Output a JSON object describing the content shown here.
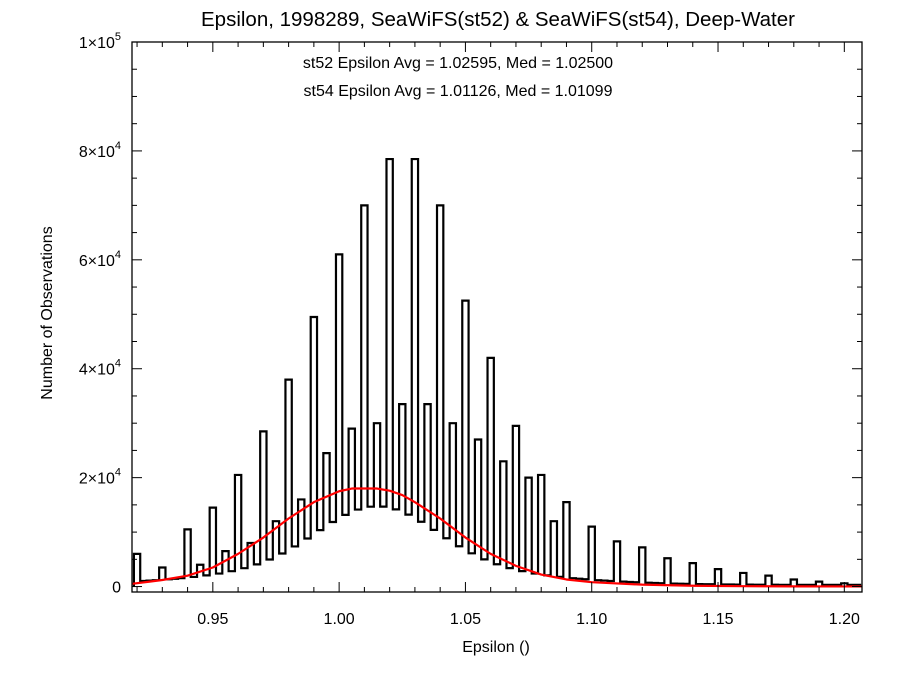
{
  "chart_data": {
    "type": "bar",
    "title": "Epsilon, 1998289, SeaWiFS(st52) & SeaWiFS(st54), Deep-Water",
    "xlabel": "Epsilon ()",
    "ylabel": "Number of Observations",
    "xlim": [
      0.918,
      1.207
    ],
    "ylim": [
      -1000,
      100000
    ],
    "x_ticks": [
      0.95,
      1.0,
      1.05,
      1.1,
      1.15,
      1.2
    ],
    "x_tick_labels": [
      "0.95",
      "1.00",
      "1.05",
      "1.10",
      "1.15",
      "1.20"
    ],
    "y_ticks": [
      0,
      20000,
      40000,
      60000,
      80000,
      100000
    ],
    "y_tick_labels": [
      {
        "mantissa": "0",
        "exp": ""
      },
      {
        "mantissa": "2×10",
        "exp": "4"
      },
      {
        "mantissa": "4×10",
        "exp": "4"
      },
      {
        "mantissa": "6×10",
        "exp": "4"
      },
      {
        "mantissa": "8×10",
        "exp": "4"
      },
      {
        "mantissa": "1×10",
        "exp": "5"
      }
    ],
    "annotations": [
      {
        "text": "st52 Epsilon Avg = 1.02595, Med = 1.02500",
        "color": "#000000"
      },
      {
        "text": "st54 Epsilon Avg = 1.01126, Med = 1.01099",
        "color": "#ff0000"
      }
    ],
    "series": [
      {
        "label": "st52",
        "style": "histogram-step",
        "color": "#000000",
        "spikes_x": [
          0.92,
          0.93,
          0.94,
          0.95,
          0.96,
          0.97,
          0.98,
          0.99,
          1.0,
          1.01,
          1.02,
          1.03,
          1.04,
          1.05,
          1.06,
          1.07,
          1.08,
          1.09,
          1.1,
          1.11,
          1.12,
          1.13,
          1.14,
          1.15,
          1.16,
          1.17,
          1.18,
          1.19,
          1.2
        ],
        "spikes_y": [
          6000,
          3500,
          10500,
          14500,
          20500,
          28500,
          38000,
          49500,
          61000,
          70000,
          78500,
          78500,
          70000,
          52500,
          42000,
          29500,
          20500,
          15500,
          11000,
          8300,
          7200,
          5200,
          4300,
          3200,
          2500,
          2000,
          1300,
          900,
          600
        ],
        "half_x": [
          0.945,
          0.955,
          0.965,
          0.975,
          0.985,
          0.995,
          1.005,
          1.015,
          1.025,
          1.035,
          1.045,
          1.055,
          1.065,
          1.075,
          1.085
        ],
        "half_y": [
          4000,
          6500,
          8000,
          12000,
          16000,
          24500,
          29000,
          30000,
          33500,
          33500,
          30000,
          27000,
          23000,
          20000,
          12000
        ],
        "baseline": {
          "x0": 0.92,
          "x1": 1.205,
          "peak": 1.015,
          "peak_y": 4000,
          "width": 0.05,
          "floor": 300
        },
        "mid": {
          "peak": 1.015,
          "peak_y": 15500,
          "width": 0.023
        }
      },
      {
        "label": "st54",
        "style": "line",
        "color": "#ff0000",
        "x": [
          0.918,
          0.925,
          0.93,
          0.94,
          0.95,
          0.96,
          0.97,
          0.98,
          0.99,
          1.0,
          1.005,
          1.01,
          1.015,
          1.02,
          1.025,
          1.03,
          1.04,
          1.05,
          1.06,
          1.07,
          1.08,
          1.09,
          1.1,
          1.12,
          1.14,
          1.16,
          1.18,
          1.2,
          1.207
        ],
        "y": [
          500,
          900,
          1200,
          2000,
          3500,
          6000,
          9000,
          12500,
          15500,
          17500,
          18000,
          18000,
          18000,
          17600,
          16800,
          15500,
          12500,
          9000,
          6000,
          3800,
          2200,
          1300,
          800,
          350,
          150,
          70,
          30,
          20,
          20
        ]
      }
    ]
  }
}
